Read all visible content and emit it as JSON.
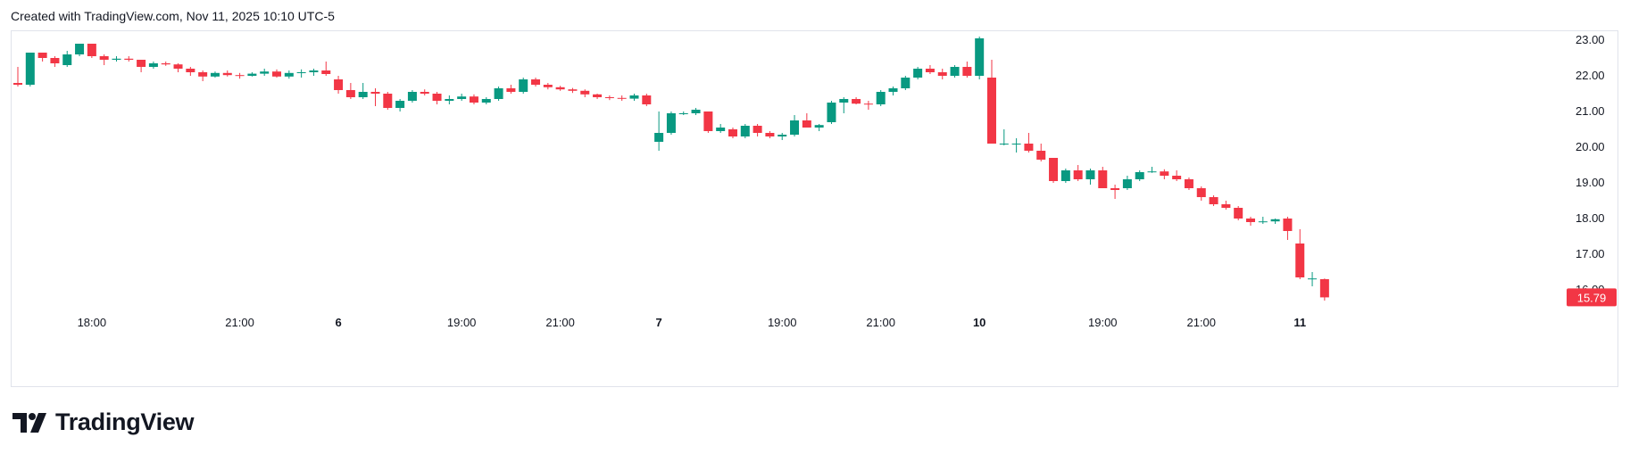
{
  "header": {
    "created_with": "Created with TradingView.com, Nov 11, 2025 10:10 UTC-5"
  },
  "brand": {
    "name": "TradingView",
    "logo_icon": "tradingview-logo-icon"
  },
  "colors": {
    "up": "#089981",
    "down": "#f23645",
    "grid_border": "#e0e3eb",
    "text": "#131722"
  },
  "chart_data": {
    "type": "candlestick",
    "ylim": [
      15.5,
      23.2
    ],
    "y_ticks": [
      "23.00",
      "22.00",
      "21.00",
      "20.00",
      "19.00",
      "18.00",
      "17.00",
      "16.00"
    ],
    "x_ticks": [
      {
        "label": "18:00",
        "bold": false,
        "index": 6
      },
      {
        "label": "21:00",
        "bold": false,
        "index": 18
      },
      {
        "label": "6",
        "bold": true,
        "index": 26
      },
      {
        "label": "19:00",
        "bold": false,
        "index": 36
      },
      {
        "label": "21:00",
        "bold": false,
        "index": 44
      },
      {
        "label": "7",
        "bold": true,
        "index": 52
      },
      {
        "label": "19:00",
        "bold": false,
        "index": 62
      },
      {
        "label": "21:00",
        "bold": false,
        "index": 70
      },
      {
        "label": "10",
        "bold": true,
        "index": 78
      },
      {
        "label": "19:00",
        "bold": false,
        "index": 88
      },
      {
        "label": "21:00",
        "bold": false,
        "index": 96
      },
      {
        "label": "11",
        "bold": true,
        "index": 104
      }
    ],
    "last_price": {
      "label": "15.79",
      "value": 15.79
    },
    "candles": [
      [
        21.8,
        22.25,
        21.7,
        21.75
      ],
      [
        21.75,
        22.65,
        21.7,
        22.65
      ],
      [
        22.65,
        22.65,
        22.4,
        22.5
      ],
      [
        22.5,
        22.55,
        22.25,
        22.35
      ],
      [
        22.3,
        22.7,
        22.25,
        22.6
      ],
      [
        22.6,
        22.9,
        22.55,
        22.9
      ],
      [
        22.9,
        22.9,
        22.5,
        22.55
      ],
      [
        22.55,
        22.6,
        22.3,
        22.45
      ],
      [
        22.45,
        22.55,
        22.4,
        22.48
      ],
      [
        22.48,
        22.55,
        22.4,
        22.45
      ],
      [
        22.45,
        22.45,
        22.1,
        22.25
      ],
      [
        22.25,
        22.4,
        22.2,
        22.35
      ],
      [
        22.35,
        22.4,
        22.28,
        22.32
      ],
      [
        22.32,
        22.35,
        22.1,
        22.2
      ],
      [
        22.2,
        22.25,
        22.0,
        22.1
      ],
      [
        22.1,
        22.15,
        21.85,
        21.98
      ],
      [
        21.98,
        22.12,
        21.95,
        22.08
      ],
      [
        22.08,
        22.15,
        21.98,
        22.02
      ],
      [
        22.02,
        22.08,
        21.92,
        22.0
      ],
      [
        22.0,
        22.1,
        21.98,
        22.06
      ],
      [
        22.06,
        22.2,
        22.0,
        22.12
      ],
      [
        22.12,
        22.18,
        21.95,
        21.98
      ],
      [
        21.98,
        22.15,
        21.92,
        22.08
      ],
      [
        22.08,
        22.18,
        21.95,
        22.1
      ],
      [
        22.1,
        22.2,
        22.0,
        22.15
      ],
      [
        22.15,
        22.4,
        22.0,
        22.05
      ],
      [
        21.9,
        22.0,
        21.5,
        21.6
      ],
      [
        21.6,
        21.8,
        21.35,
        21.4
      ],
      [
        21.4,
        21.8,
        21.35,
        21.55
      ],
      [
        21.55,
        21.65,
        21.15,
        21.5
      ],
      [
        21.5,
        21.55,
        21.05,
        21.1
      ],
      [
        21.1,
        21.35,
        21.0,
        21.3
      ],
      [
        21.3,
        21.6,
        21.25,
        21.55
      ],
      [
        21.55,
        21.62,
        21.45,
        21.5
      ],
      [
        21.5,
        21.55,
        21.2,
        21.3
      ],
      [
        21.3,
        21.45,
        21.2,
        21.35
      ],
      [
        21.35,
        21.5,
        21.3,
        21.42
      ],
      [
        21.42,
        21.48,
        21.2,
        21.25
      ],
      [
        21.25,
        21.4,
        21.2,
        21.35
      ],
      [
        21.35,
        21.7,
        21.3,
        21.65
      ],
      [
        21.65,
        21.75,
        21.5,
        21.55
      ],
      [
        21.55,
        21.95,
        21.5,
        21.9
      ],
      [
        21.9,
        21.95,
        21.7,
        21.75
      ],
      [
        21.75,
        21.8,
        21.62,
        21.68
      ],
      [
        21.68,
        21.72,
        21.58,
        21.62
      ],
      [
        21.62,
        21.66,
        21.52,
        21.58
      ],
      [
        21.58,
        21.62,
        21.4,
        21.48
      ],
      [
        21.48,
        21.5,
        21.35,
        21.4
      ],
      [
        21.4,
        21.45,
        21.32,
        21.38
      ],
      [
        21.38,
        21.45,
        21.3,
        21.36
      ],
      [
        21.36,
        21.5,
        21.3,
        21.45
      ],
      [
        21.45,
        21.5,
        21.15,
        21.2
      ],
      [
        20.15,
        21.0,
        19.9,
        20.4
      ],
      [
        20.4,
        21.0,
        20.35,
        20.95
      ],
      [
        20.95,
        21.0,
        20.9,
        20.95
      ],
      [
        20.95,
        21.1,
        20.9,
        21.05
      ],
      [
        21.0,
        21.0,
        20.4,
        20.45
      ],
      [
        20.45,
        20.65,
        20.4,
        20.55
      ],
      [
        20.5,
        20.55,
        20.25,
        20.3
      ],
      [
        20.3,
        20.65,
        20.25,
        20.6
      ],
      [
        20.6,
        20.65,
        20.3,
        20.4
      ],
      [
        20.4,
        20.45,
        20.25,
        20.3
      ],
      [
        20.3,
        20.4,
        20.2,
        20.35
      ],
      [
        20.35,
        20.9,
        20.3,
        20.75
      ],
      [
        20.75,
        20.95,
        20.55,
        20.55
      ],
      [
        20.55,
        20.65,
        20.45,
        20.62
      ],
      [
        20.7,
        21.3,
        20.65,
        21.25
      ],
      [
        21.25,
        21.4,
        20.95,
        21.35
      ],
      [
        21.35,
        21.4,
        21.2,
        21.22
      ],
      [
        21.22,
        21.3,
        21.05,
        21.2
      ],
      [
        21.2,
        21.6,
        21.15,
        21.55
      ],
      [
        21.55,
        21.7,
        21.45,
        21.65
      ],
      [
        21.65,
        22.0,
        21.6,
        21.95
      ],
      [
        21.95,
        22.25,
        21.9,
        22.2
      ],
      [
        22.2,
        22.3,
        22.05,
        22.1
      ],
      [
        22.1,
        22.2,
        21.9,
        22.0
      ],
      [
        22.0,
        22.3,
        21.95,
        22.25
      ],
      [
        22.25,
        22.4,
        21.95,
        22.0
      ],
      [
        22.0,
        23.1,
        21.9,
        23.05
      ],
      [
        21.95,
        22.45,
        20.1,
        20.1
      ],
      [
        20.1,
        20.5,
        20.05,
        20.1
      ],
      [
        20.1,
        20.25,
        19.85,
        20.1
      ],
      [
        20.1,
        20.4,
        19.85,
        19.9
      ],
      [
        19.9,
        20.1,
        19.6,
        19.65
      ],
      [
        19.7,
        19.7,
        19.0,
        19.05
      ],
      [
        19.05,
        19.4,
        19.0,
        19.35
      ],
      [
        19.35,
        19.5,
        19.05,
        19.1
      ],
      [
        19.1,
        19.4,
        18.95,
        19.35
      ],
      [
        19.35,
        19.45,
        18.85,
        18.85
      ],
      [
        18.85,
        18.95,
        18.55,
        18.8
      ],
      [
        18.85,
        19.2,
        18.8,
        19.1
      ],
      [
        19.1,
        19.35,
        19.05,
        19.3
      ],
      [
        19.3,
        19.45,
        19.28,
        19.32
      ],
      [
        19.32,
        19.38,
        19.1,
        19.2
      ],
      [
        19.2,
        19.35,
        19.05,
        19.1
      ],
      [
        19.1,
        19.15,
        18.8,
        18.85
      ],
      [
        18.85,
        18.9,
        18.5,
        18.6
      ],
      [
        18.6,
        18.65,
        18.35,
        18.4
      ],
      [
        18.4,
        18.5,
        18.25,
        18.3
      ],
      [
        18.3,
        18.35,
        17.95,
        18.0
      ],
      [
        18.0,
        18.05,
        17.8,
        17.9
      ],
      [
        17.9,
        18.05,
        17.85,
        17.92
      ],
      [
        17.92,
        18.0,
        17.85,
        17.98
      ],
      [
        18.0,
        18.05,
        17.4,
        17.65
      ],
      [
        17.3,
        17.7,
        16.3,
        16.35
      ],
      [
        16.3,
        16.5,
        16.1,
        16.32
      ],
      [
        16.3,
        16.32,
        15.7,
        15.79
      ]
    ]
  }
}
